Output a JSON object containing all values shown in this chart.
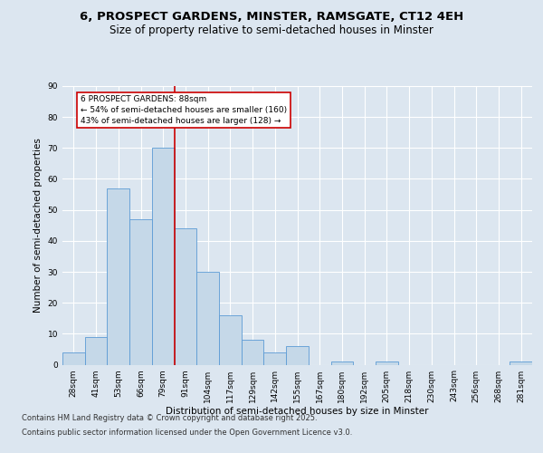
{
  "title_line1": "6, PROSPECT GARDENS, MINSTER, RAMSGATE, CT12 4EH",
  "title_line2": "Size of property relative to semi-detached houses in Minster",
  "xlabel": "Distribution of semi-detached houses by size in Minster",
  "ylabel": "Number of semi-detached properties",
  "categories": [
    "28sqm",
    "41sqm",
    "53sqm",
    "66sqm",
    "79sqm",
    "91sqm",
    "104sqm",
    "117sqm",
    "129sqm",
    "142sqm",
    "155sqm",
    "167sqm",
    "180sqm",
    "192sqm",
    "205sqm",
    "218sqm",
    "230sqm",
    "243sqm",
    "256sqm",
    "268sqm",
    "281sqm"
  ],
  "values": [
    4,
    9,
    57,
    47,
    70,
    44,
    30,
    16,
    8,
    4,
    6,
    0,
    1,
    0,
    1,
    0,
    0,
    0,
    0,
    0,
    1
  ],
  "bar_color": "#c5d8e8",
  "bar_edge_color": "#5b9bd5",
  "background_color": "#dce6f0",
  "plot_background": "#dce6f0",
  "grid_color": "#ffffff",
  "ylim": [
    0,
    90
  ],
  "yticks": [
    0,
    10,
    20,
    30,
    40,
    50,
    60,
    70,
    80,
    90
  ],
  "property_line_color": "#cc0000",
  "annotation_text": "6 PROSPECT GARDENS: 88sqm\n← 54% of semi-detached houses are smaller (160)\n43% of semi-detached houses are larger (128) →",
  "annotation_box_color": "#ffffff",
  "annotation_box_edge": "#cc0000",
  "footer_line1": "Contains HM Land Registry data © Crown copyright and database right 2025.",
  "footer_line2": "Contains public sector information licensed under the Open Government Licence v3.0.",
  "title_fontsize": 9.5,
  "subtitle_fontsize": 8.5,
  "axis_label_fontsize": 7.5,
  "tick_fontsize": 6.5,
  "annotation_fontsize": 6.5,
  "footer_fontsize": 6
}
